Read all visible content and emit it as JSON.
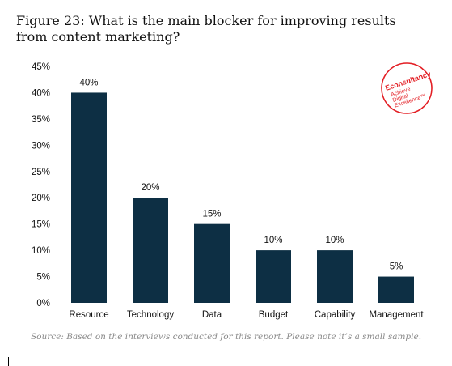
{
  "title": "Figure 23: What is the main blocker for improving results from content marketing?",
  "source": "Source: Based on the interviews conducted for this report. Please note it’s a small sample.",
  "logo": {
    "brand": "Econsultancy",
    "tagline": "Achieve Digital Excellence™",
    "color": "#e31e24"
  },
  "colors": {
    "bar": "#0d2f44"
  },
  "chart_data": {
    "type": "bar",
    "categories": [
      "Resource",
      "Technology",
      "Data",
      "Budget",
      "Capability",
      "Management"
    ],
    "values": [
      40,
      20,
      15,
      10,
      10,
      5
    ],
    "data_labels": [
      "40%",
      "20%",
      "15%",
      "10%",
      "10%",
      "5%"
    ],
    "yticks": [
      "0%",
      "5%",
      "10%",
      "15%",
      "20%",
      "25%",
      "30%",
      "35%",
      "40%",
      "45%"
    ],
    "ylim": [
      0,
      45
    ],
    "grid": false,
    "legend": "none"
  }
}
